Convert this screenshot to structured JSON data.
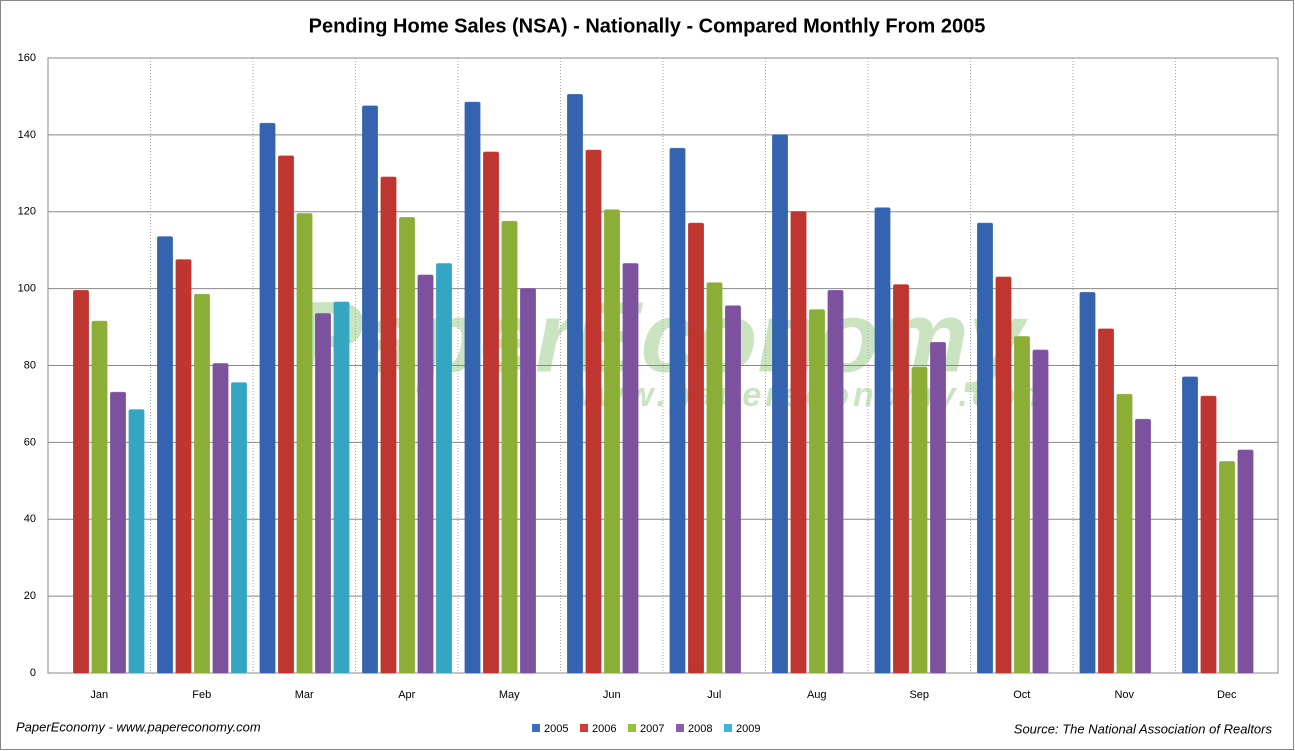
{
  "chart_data": {
    "type": "bar",
    "title": "Pending Home Sales (NSA) - Nationally - Compared Monthly From 2005",
    "categories": [
      "Jan",
      "Feb",
      "Mar",
      "Apr",
      "May",
      "Jun",
      "Jul",
      "Aug",
      "Sep",
      "Oct",
      "Nov",
      "Dec"
    ],
    "series": [
      {
        "name": "2005",
        "color": "#3a6fc4",
        "values": [
          null,
          113.5,
          143,
          147.5,
          148.5,
          150.5,
          136.5,
          140,
          121,
          117,
          99,
          77
        ]
      },
      {
        "name": "2006",
        "color": "#d43b35",
        "values": [
          99.5,
          107.5,
          134.5,
          129,
          135.5,
          136,
          117,
          120,
          101,
          103,
          89.5,
          72
        ]
      },
      {
        "name": "2007",
        "color": "#9ac23c",
        "values": [
          91.5,
          98.5,
          119.5,
          118.5,
          117.5,
          120.5,
          101.5,
          94.5,
          79.5,
          87.5,
          72.5,
          55
        ]
      },
      {
        "name": "2008",
        "color": "#8a5bb0",
        "values": [
          73,
          80.5,
          93.5,
          103.5,
          100,
          106.5,
          95.5,
          99.5,
          86,
          84,
          66,
          58
        ]
      },
      {
        "name": "2009",
        "color": "#3bb8d8",
        "values": [
          68.5,
          75.5,
          96.5,
          106.5,
          null,
          null,
          null,
          null,
          null,
          null,
          null,
          null
        ]
      }
    ],
    "ylim": [
      0,
      160
    ],
    "yticks": [
      0,
      20,
      40,
      60,
      80,
      100,
      120,
      140,
      160
    ],
    "grid": true,
    "watermark": [
      "PaperEconomy",
      "www.papereconomy.com"
    ],
    "footer_left": "PaperEconomy - www.papereconomy.com",
    "source": "Source: The National Association of Realtors"
  }
}
